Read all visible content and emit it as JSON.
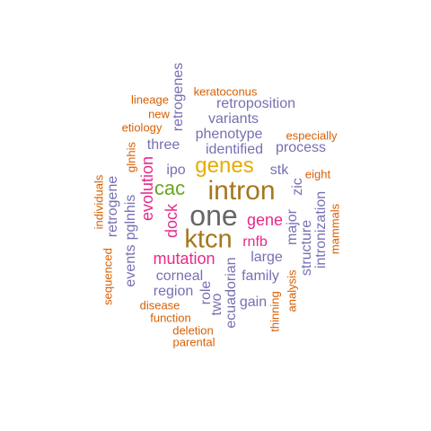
{
  "colors": {
    "grey": "#666666",
    "brown": "#a6761d",
    "gold": "#e6ab02",
    "green": "#66a61e",
    "magenta": "#e7298a",
    "purple": "#7570b3",
    "orange": "#d95f02"
  },
  "words": [
    {
      "text": "one",
      "color": "#666666"
    },
    {
      "text": "intron",
      "color": "#a6761d"
    },
    {
      "text": "ktcn",
      "color": "#a6761d"
    },
    {
      "text": "genes",
      "color": "#e6ab02"
    },
    {
      "text": "cac",
      "color": "#66a61e"
    },
    {
      "text": "mutation",
      "color": "#e7298a"
    },
    {
      "text": "gene",
      "color": "#e7298a"
    },
    {
      "text": "evolution",
      "color": "#e7298a"
    },
    {
      "text": "dock",
      "color": "#e7298a"
    },
    {
      "text": "rnfb",
      "color": "#e7298a"
    },
    {
      "text": "retroposition",
      "color": "#7570b3"
    },
    {
      "text": "variants",
      "color": "#7570b3"
    },
    {
      "text": "phenotype",
      "color": "#7570b3"
    },
    {
      "text": "identified",
      "color": "#7570b3"
    },
    {
      "text": "process",
      "color": "#7570b3"
    },
    {
      "text": "three",
      "color": "#7570b3"
    },
    {
      "text": "ipo",
      "color": "#7570b3"
    },
    {
      "text": "stk",
      "color": "#7570b3"
    },
    {
      "text": "zic",
      "color": "#7570b3"
    },
    {
      "text": "large",
      "color": "#7570b3"
    },
    {
      "text": "family",
      "color": "#7570b3"
    },
    {
      "text": "corneal",
      "color": "#7570b3"
    },
    {
      "text": "region",
      "color": "#7570b3"
    },
    {
      "text": "gain",
      "color": "#7570b3"
    },
    {
      "text": "retrogenes",
      "color": "#7570b3"
    },
    {
      "text": "retrogene",
      "color": "#7570b3"
    },
    {
      "text": "pglnhis",
      "color": "#7570b3"
    },
    {
      "text": "events",
      "color": "#7570b3"
    },
    {
      "text": "role",
      "color": "#7570b3"
    },
    {
      "text": "two",
      "color": "#7570b3"
    },
    {
      "text": "ecuadorian",
      "color": "#7570b3"
    },
    {
      "text": "major",
      "color": "#7570b3"
    },
    {
      "text": "structure",
      "color": "#7570b3"
    },
    {
      "text": "intronization",
      "color": "#7570b3"
    },
    {
      "text": "keratoconus",
      "color": "#d95f02"
    },
    {
      "text": "lineage",
      "color": "#d95f02"
    },
    {
      "text": "new",
      "color": "#d95f02"
    },
    {
      "text": "etiology",
      "color": "#d95f02"
    },
    {
      "text": "especially",
      "color": "#d95f02"
    },
    {
      "text": "eight",
      "color": "#d95f02"
    },
    {
      "text": "glnhis",
      "color": "#d95f02"
    },
    {
      "text": "individuals",
      "color": "#d95f02"
    },
    {
      "text": "sequenced",
      "color": "#d95f02"
    },
    {
      "text": "disease",
      "color": "#d95f02"
    },
    {
      "text": "function",
      "color": "#d95f02"
    },
    {
      "text": "deletion",
      "color": "#d95f02"
    },
    {
      "text": "parental",
      "color": "#d95f02"
    },
    {
      "text": "thinning",
      "color": "#d95f02"
    },
    {
      "text": "analysis",
      "color": "#d95f02"
    },
    {
      "text": "mammals",
      "color": "#d95f02"
    }
  ]
}
